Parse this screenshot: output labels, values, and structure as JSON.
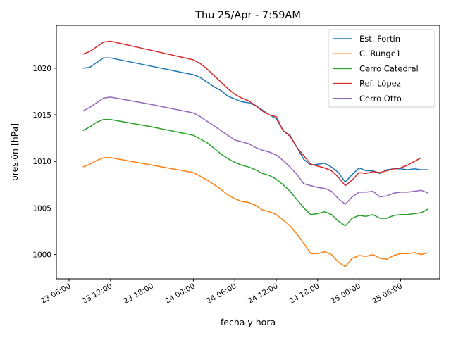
{
  "chart_data": {
    "type": "line",
    "title": "Thu 25/Apr - 7:59AM",
    "xlabel": "fecha y hora",
    "ylabel": "presión [hPa]",
    "x_unit": "date-time",
    "xlim": [
      "2024-04-23T04:10",
      "2024-04-25T11:40"
    ],
    "ylim": [
      997.4,
      1024.6
    ],
    "xticks": [
      {
        "t": "2024-04-23T06:00",
        "label": "23 06:00"
      },
      {
        "t": "2024-04-23T12:00",
        "label": "23 12:00"
      },
      {
        "t": "2024-04-23T18:00",
        "label": "23 18:00"
      },
      {
        "t": "2024-04-24T00:00",
        "label": "24 00:00"
      },
      {
        "t": "2024-04-24T06:00",
        "label": "24 06:00"
      },
      {
        "t": "2024-04-24T12:00",
        "label": "24 12:00"
      },
      {
        "t": "2024-04-24T18:00",
        "label": "24 18:00"
      },
      {
        "t": "2024-04-25T00:00",
        "label": "25 00:00"
      },
      {
        "t": "2024-04-25T06:00",
        "label": "25 06:00"
      }
    ],
    "yticks": [
      1000,
      1005,
      1010,
      1015,
      1020
    ],
    "grid": false,
    "legend_position": "top-right",
    "series": [
      {
        "name": "Est. Fortín",
        "color": "#1f77b4",
        "points": [
          [
            "2024-04-23T08:00",
            1020.0
          ],
          [
            "2024-04-23T09:00",
            1020.1
          ],
          [
            "2024-04-23T10:00",
            1020.6
          ],
          [
            "2024-04-23T11:00",
            1021.1
          ],
          [
            "2024-04-23T12:00",
            1021.1
          ],
          [
            "2024-04-23T18:00",
            1020.2
          ],
          [
            "2024-04-24T00:00",
            1019.3
          ],
          [
            "2024-04-24T01:00",
            1019.0
          ],
          [
            "2024-04-24T02:00",
            1018.5
          ],
          [
            "2024-04-24T03:00",
            1018.0
          ],
          [
            "2024-04-24T04:00",
            1017.6
          ],
          [
            "2024-04-24T05:00",
            1017.0
          ],
          [
            "2024-04-24T06:00",
            1016.7
          ],
          [
            "2024-04-24T07:00",
            1016.4
          ],
          [
            "2024-04-24T08:00",
            1016.3
          ],
          [
            "2024-04-24T09:00",
            1016.0
          ],
          [
            "2024-04-24T10:00",
            1015.5
          ],
          [
            "2024-04-24T11:00",
            1015.0
          ],
          [
            "2024-04-24T12:00",
            1014.6
          ],
          [
            "2024-04-24T13:00",
            1013.3
          ],
          [
            "2024-04-24T14:00",
            1012.8
          ],
          [
            "2024-04-24T15:00",
            1011.5
          ],
          [
            "2024-04-24T16:00",
            1010.2
          ],
          [
            "2024-04-24T17:00",
            1009.6
          ],
          [
            "2024-04-24T18:00",
            1009.7
          ],
          [
            "2024-04-24T19:00",
            1009.8
          ],
          [
            "2024-04-24T20:00",
            1009.4
          ],
          [
            "2024-04-24T21:00",
            1008.8
          ],
          [
            "2024-04-24T22:00",
            1007.8
          ],
          [
            "2024-04-24T23:00",
            1008.6
          ],
          [
            "2024-04-25T00:00",
            1009.3
          ],
          [
            "2024-04-25T01:00",
            1009.0
          ],
          [
            "2024-04-25T02:00",
            1009.0
          ],
          [
            "2024-04-25T03:00",
            1008.7
          ],
          [
            "2024-04-25T04:00",
            1009.1
          ],
          [
            "2024-04-25T05:00",
            1009.2
          ],
          [
            "2024-04-25T06:00",
            1009.2
          ],
          [
            "2024-04-25T07:00",
            1009.1
          ],
          [
            "2024-04-25T08:00",
            1009.2
          ],
          [
            "2024-04-25T09:00",
            1009.1
          ],
          [
            "2024-04-25T10:00",
            1009.1
          ]
        ]
      },
      {
        "name": "C. Runge1",
        "color": "#ff7f0e",
        "points": [
          [
            "2024-04-23T08:00",
            1009.4
          ],
          [
            "2024-04-23T09:00",
            1009.7
          ],
          [
            "2024-04-23T10:00",
            1010.1
          ],
          [
            "2024-04-23T11:00",
            1010.4
          ],
          [
            "2024-04-23T12:00",
            1010.4
          ],
          [
            "2024-04-23T18:00",
            1009.6
          ],
          [
            "2024-04-24T00:00",
            1008.8
          ],
          [
            "2024-04-24T01:00",
            1008.4
          ],
          [
            "2024-04-24T02:00",
            1008.0
          ],
          [
            "2024-04-24T03:00",
            1007.5
          ],
          [
            "2024-04-24T04:00",
            1007.0
          ],
          [
            "2024-04-24T05:00",
            1006.4
          ],
          [
            "2024-04-24T06:00",
            1006.0
          ],
          [
            "2024-04-24T07:00",
            1005.7
          ],
          [
            "2024-04-24T08:00",
            1005.6
          ],
          [
            "2024-04-24T09:00",
            1005.3
          ],
          [
            "2024-04-24T10:00",
            1004.8
          ],
          [
            "2024-04-24T11:00",
            1004.6
          ],
          [
            "2024-04-24T12:00",
            1004.3
          ],
          [
            "2024-04-24T13:00",
            1003.7
          ],
          [
            "2024-04-24T14:00",
            1003.1
          ],
          [
            "2024-04-24T15:00",
            1002.2
          ],
          [
            "2024-04-24T16:00",
            1001.2
          ],
          [
            "2024-04-24T17:00",
            1000.1
          ],
          [
            "2024-04-24T18:00",
            1000.1
          ],
          [
            "2024-04-24T19:00",
            1000.3
          ],
          [
            "2024-04-24T20:00",
            1000.0
          ],
          [
            "2024-04-24T21:00",
            999.2
          ],
          [
            "2024-04-24T22:00",
            998.7
          ],
          [
            "2024-04-24T23:00",
            999.6
          ],
          [
            "2024-04-25T00:00",
            999.9
          ],
          [
            "2024-04-25T01:00",
            999.8
          ],
          [
            "2024-04-25T02:00",
            1000.0
          ],
          [
            "2024-04-25T03:00",
            999.6
          ],
          [
            "2024-04-25T04:00",
            999.5
          ],
          [
            "2024-04-25T05:00",
            999.9
          ],
          [
            "2024-04-25T06:00",
            1000.1
          ],
          [
            "2024-04-25T07:00",
            1000.1
          ],
          [
            "2024-04-25T08:00",
            1000.2
          ],
          [
            "2024-04-25T09:00",
            1000.0
          ],
          [
            "2024-04-25T10:00",
            1000.2
          ]
        ]
      },
      {
        "name": "Cerro Catedral",
        "color": "#2ca02c",
        "points": [
          [
            "2024-04-23T08:00",
            1013.3
          ],
          [
            "2024-04-23T09:00",
            1013.7
          ],
          [
            "2024-04-23T10:00",
            1014.2
          ],
          [
            "2024-04-23T11:00",
            1014.5
          ],
          [
            "2024-04-23T12:00",
            1014.5
          ],
          [
            "2024-04-23T18:00",
            1013.7
          ],
          [
            "2024-04-24T00:00",
            1012.8
          ],
          [
            "2024-04-24T01:00",
            1012.4
          ],
          [
            "2024-04-24T02:00",
            1012.0
          ],
          [
            "2024-04-24T03:00",
            1011.4
          ],
          [
            "2024-04-24T04:00",
            1010.8
          ],
          [
            "2024-04-24T05:00",
            1010.3
          ],
          [
            "2024-04-24T06:00",
            1009.9
          ],
          [
            "2024-04-24T07:00",
            1009.6
          ],
          [
            "2024-04-24T08:00",
            1009.4
          ],
          [
            "2024-04-24T09:00",
            1009.1
          ],
          [
            "2024-04-24T10:00",
            1008.7
          ],
          [
            "2024-04-24T11:00",
            1008.5
          ],
          [
            "2024-04-24T12:00",
            1008.1
          ],
          [
            "2024-04-24T13:00",
            1007.5
          ],
          [
            "2024-04-24T14:00",
            1006.8
          ],
          [
            "2024-04-24T15:00",
            1005.9
          ],
          [
            "2024-04-24T16:00",
            1005.0
          ],
          [
            "2024-04-24T17:00",
            1004.3
          ],
          [
            "2024-04-24T18:00",
            1004.4
          ],
          [
            "2024-04-24T19:00",
            1004.6
          ],
          [
            "2024-04-24T20:00",
            1004.3
          ],
          [
            "2024-04-24T21:00",
            1003.6
          ],
          [
            "2024-04-24T22:00",
            1003.1
          ],
          [
            "2024-04-24T23:00",
            1003.9
          ],
          [
            "2024-04-25T00:00",
            1004.2
          ],
          [
            "2024-04-25T01:00",
            1004.1
          ],
          [
            "2024-04-25T02:00",
            1004.3
          ],
          [
            "2024-04-25T03:00",
            1003.9
          ],
          [
            "2024-04-25T04:00",
            1003.9
          ],
          [
            "2024-04-25T05:00",
            1004.2
          ],
          [
            "2024-04-25T06:00",
            1004.3
          ],
          [
            "2024-04-25T07:00",
            1004.3
          ],
          [
            "2024-04-25T08:00",
            1004.4
          ],
          [
            "2024-04-25T09:00",
            1004.5
          ],
          [
            "2024-04-25T10:00",
            1004.9
          ]
        ]
      },
      {
        "name": "Ref. López",
        "color": "#d62728",
        "points": [
          [
            "2024-04-23T08:00",
            1021.5
          ],
          [
            "2024-04-23T09:00",
            1021.8
          ],
          [
            "2024-04-23T10:00",
            1022.3
          ],
          [
            "2024-04-23T11:00",
            1022.8
          ],
          [
            "2024-04-23T12:00",
            1022.9
          ],
          [
            "2024-04-23T18:00",
            1021.9
          ],
          [
            "2024-04-24T00:00",
            1020.9
          ],
          [
            "2024-04-24T01:00",
            1020.5
          ],
          [
            "2024-04-24T02:00",
            1019.9
          ],
          [
            "2024-04-24T03:00",
            1019.2
          ],
          [
            "2024-04-24T04:00",
            1018.5
          ],
          [
            "2024-04-24T05:00",
            1017.8
          ],
          [
            "2024-04-24T06:00",
            1017.2
          ],
          [
            "2024-04-24T07:00",
            1016.8
          ],
          [
            "2024-04-24T08:00",
            1016.5
          ],
          [
            "2024-04-24T09:00",
            1016.0
          ],
          [
            "2024-04-24T10:00",
            1015.4
          ],
          [
            "2024-04-24T11:00",
            1015.0
          ],
          [
            "2024-04-24T12:00",
            1014.8
          ],
          [
            "2024-04-24T13:00",
            1013.3
          ],
          [
            "2024-04-24T14:00",
            1012.7
          ],
          [
            "2024-04-24T15:00",
            1011.5
          ],
          [
            "2024-04-24T16:00",
            1010.6
          ],
          [
            "2024-04-24T17:00",
            1009.7
          ],
          [
            "2024-04-24T18:00",
            1009.5
          ],
          [
            "2024-04-24T19:00",
            1009.3
          ],
          [
            "2024-04-24T20:00",
            1009.0
          ],
          [
            "2024-04-24T21:00",
            1008.3
          ],
          [
            "2024-04-24T22:00",
            1007.4
          ],
          [
            "2024-04-24T23:00",
            1008.0
          ],
          [
            "2024-04-25T00:00",
            1008.8
          ],
          [
            "2024-04-25T01:00",
            1008.7
          ],
          [
            "2024-04-25T02:00",
            1008.9
          ],
          [
            "2024-04-25T03:00",
            1008.8
          ],
          [
            "2024-04-25T04:00",
            1009.0
          ],
          [
            "2024-04-25T05:00",
            1009.2
          ],
          [
            "2024-04-25T06:00",
            1009.3
          ],
          [
            "2024-04-25T07:00",
            1009.6
          ],
          [
            "2024-04-25T08:00",
            1010.0
          ],
          [
            "2024-04-25T09:00",
            1010.4
          ]
        ]
      },
      {
        "name": "Cerro Otto",
        "color": "#9467bd",
        "points": [
          [
            "2024-04-23T08:00",
            1015.4
          ],
          [
            "2024-04-23T09:00",
            1015.8
          ],
          [
            "2024-04-23T10:00",
            1016.3
          ],
          [
            "2024-04-23T11:00",
            1016.8
          ],
          [
            "2024-04-23T12:00",
            1016.9
          ],
          [
            "2024-04-23T18:00",
            1016.1
          ],
          [
            "2024-04-24T00:00",
            1015.2
          ],
          [
            "2024-04-24T01:00",
            1014.8
          ],
          [
            "2024-04-24T02:00",
            1014.3
          ],
          [
            "2024-04-24T03:00",
            1013.8
          ],
          [
            "2024-04-24T04:00",
            1013.3
          ],
          [
            "2024-04-24T05:00",
            1012.8
          ],
          [
            "2024-04-24T06:00",
            1012.3
          ],
          [
            "2024-04-24T07:00",
            1012.1
          ],
          [
            "2024-04-24T08:00",
            1011.9
          ],
          [
            "2024-04-24T09:00",
            1011.5
          ],
          [
            "2024-04-24T10:00",
            1011.2
          ],
          [
            "2024-04-24T11:00",
            1011.0
          ],
          [
            "2024-04-24T12:00",
            1010.7
          ],
          [
            "2024-04-24T13:00",
            1010.1
          ],
          [
            "2024-04-24T14:00",
            1009.4
          ],
          [
            "2024-04-24T15:00",
            1008.6
          ],
          [
            "2024-04-24T16:00",
            1007.6
          ],
          [
            "2024-04-24T17:00",
            1007.4
          ],
          [
            "2024-04-24T18:00",
            1007.2
          ],
          [
            "2024-04-24T19:00",
            1007.1
          ],
          [
            "2024-04-24T20:00",
            1006.8
          ],
          [
            "2024-04-24T21:00",
            1006.0
          ],
          [
            "2024-04-24T22:00",
            1005.4
          ],
          [
            "2024-04-24T23:00",
            1006.2
          ],
          [
            "2024-04-25T00:00",
            1006.7
          ],
          [
            "2024-04-25T01:00",
            1006.7
          ],
          [
            "2024-04-25T02:00",
            1006.8
          ],
          [
            "2024-04-25T03:00",
            1006.2
          ],
          [
            "2024-04-25T04:00",
            1006.3
          ],
          [
            "2024-04-25T05:00",
            1006.6
          ],
          [
            "2024-04-25T06:00",
            1006.7
          ],
          [
            "2024-04-25T07:00",
            1006.7
          ],
          [
            "2024-04-25T08:00",
            1006.8
          ],
          [
            "2024-04-25T09:00",
            1006.9
          ],
          [
            "2024-04-25T10:00",
            1006.6
          ]
        ]
      }
    ]
  }
}
